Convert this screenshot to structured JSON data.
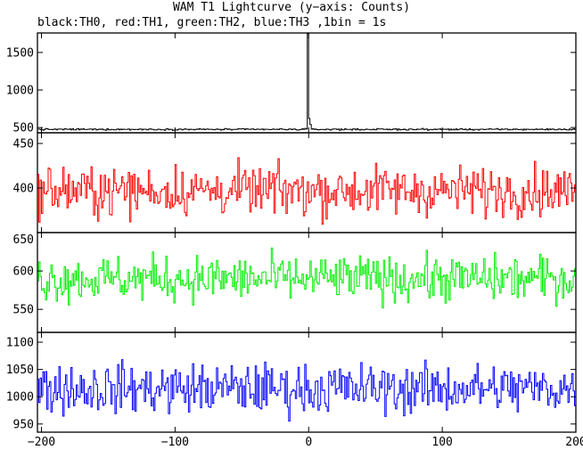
{
  "title": "WAM T1 Lightcurve (y−axis: Counts)",
  "subtitle": "black:TH0, red:TH1, green:TH2, blue:TH3 ,1bin = 1s",
  "chart_data": {
    "type": "line",
    "title": "WAM T1 Lightcurve (y−axis: Counts)",
    "subtitle": "black:TH0, red:TH1, green:TH2, blue:TH3 ,1bin = 1s",
    "xlim": [
      -203,
      200
    ],
    "x_ticks": [
      -200,
      -100,
      0,
      100,
      200
    ],
    "bin_width_s": 1,
    "panels": [
      {
        "series": "TH0",
        "color": "#000000",
        "ylim": [
          430,
          1760
        ],
        "y_ticks": [
          500,
          1000,
          1500
        ],
        "baseline": 475,
        "noise": 10,
        "spikes": [
          {
            "x": -1,
            "y": 1750
          },
          {
            "x": 0,
            "y": 620
          },
          {
            "x": 1,
            "y": 540
          }
        ]
      },
      {
        "series": "TH1",
        "color": "#ff0000",
        "ylim": [
          350,
          462
        ],
        "y_ticks": [
          400,
          450
        ],
        "baseline": 397,
        "noise": 27
      },
      {
        "series": "TH2",
        "color": "#00ee00",
        "ylim": [
          520,
          650
        ],
        "y_ticks": [
          550,
          600,
          650
        ],
        "baseline": 590,
        "noise": 29
      },
      {
        "series": "TH3",
        "color": "#0000ff",
        "ylim": [
          935,
          1118
        ],
        "y_ticks": [
          950,
          1000,
          1050,
          1100
        ],
        "baseline": 1015,
        "noise": 45
      }
    ]
  }
}
